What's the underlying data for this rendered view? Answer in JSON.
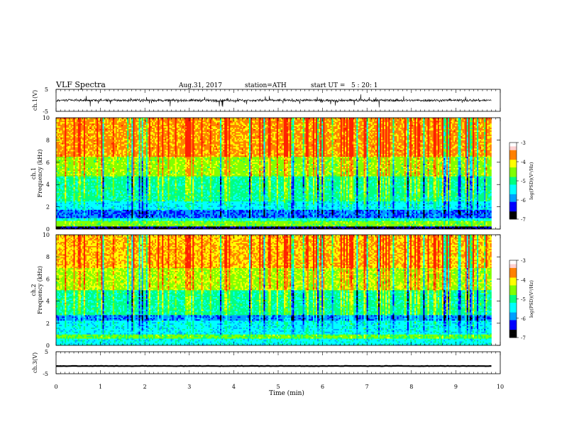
{
  "header": {
    "title": "VLF Spectra",
    "date": "Aug.31, 2017",
    "station": "station=ATH",
    "start_ut": "start UT =   5 : 20: 1"
  },
  "chart_data": [
    {
      "type": "line",
      "panel": "ch1-waveform",
      "ylabel": "ch.1(V)",
      "ylim": [
        -5,
        5
      ],
      "yticks": [
        "5",
        "-5"
      ],
      "xlim": [
        0,
        10
      ],
      "x_extent": [
        0,
        9.8
      ],
      "description_values": {
        "baseline_v": 0.0,
        "typical_amplitude_v": 1.2,
        "peak_amplitude_v": 2.8
      }
    },
    {
      "type": "heatmap",
      "panel": "ch1-spectrogram",
      "ylabel_line1": "ch.1",
      "ylabel_line2": "Frequency (kHz)",
      "ylim": [
        0,
        10
      ],
      "yticks": [
        "0",
        "2",
        "4",
        "6",
        "8",
        "10"
      ],
      "xlim": [
        0,
        10
      ],
      "x_extent": [
        0,
        9.8
      ],
      "frequency_bands_khz": [
        {
          "from": 0.0,
          "to": 0.3,
          "log_psd": -6.6
        },
        {
          "from": 0.3,
          "to": 0.8,
          "log_psd": -4.6
        },
        {
          "from": 0.8,
          "to": 1.0,
          "log_psd": -5.3
        },
        {
          "from": 1.0,
          "to": 1.8,
          "log_psd": -6.1
        },
        {
          "from": 1.8,
          "to": 2.5,
          "log_psd": -5.5
        },
        {
          "from": 2.5,
          "to": 4.8,
          "log_psd": -5.1
        },
        {
          "from": 4.8,
          "to": 6.5,
          "log_psd": -4.5
        },
        {
          "from": 6.5,
          "to": 10.0,
          "log_psd": -3.8
        }
      ],
      "colorbar": {
        "label": "log(PSD)(V²/Hz)",
        "range": [
          -7,
          -3
        ],
        "ticks": [
          "-3",
          "-4",
          "-5",
          "-6",
          "-7"
        ]
      }
    },
    {
      "type": "heatmap",
      "panel": "ch2-spectrogram",
      "ylabel_line1": "ch.2",
      "ylabel_line2": "Frequency (kHz)",
      "ylim": [
        0,
        10
      ],
      "yticks": [
        "0",
        "2",
        "4",
        "6",
        "8",
        "10"
      ],
      "xlim": [
        0,
        10
      ],
      "x_extent": [
        0,
        9.8
      ],
      "frequency_bands_khz": [
        {
          "from": 0.0,
          "to": 0.6,
          "log_psd": -5.4
        },
        {
          "from": 0.6,
          "to": 1.0,
          "log_psd": -4.7
        },
        {
          "from": 1.0,
          "to": 2.2,
          "log_psd": -5.5
        },
        {
          "from": 2.2,
          "to": 2.8,
          "log_psd": -6.0
        },
        {
          "from": 2.8,
          "to": 5.0,
          "log_psd": -5.1
        },
        {
          "from": 5.0,
          "to": 7.0,
          "log_psd": -4.4
        },
        {
          "from": 7.0,
          "to": 10.0,
          "log_psd": -3.9
        }
      ],
      "colorbar": {
        "label": "log(PSD)(V²/Hz)",
        "range": [
          -7,
          -3
        ],
        "ticks": [
          "-3",
          "-4",
          "-5",
          "-6",
          "-7"
        ]
      }
    },
    {
      "type": "line",
      "panel": "ch3-waveform",
      "ylabel": "ch.3(V)",
      "ylim": [
        -5,
        5
      ],
      "yticks": [
        "5",
        "-5"
      ],
      "xlim": [
        0,
        10
      ],
      "x_extent": [
        0,
        9.8
      ],
      "description_values": {
        "baseline_v": -1.5,
        "typical_amplitude_v": 0.2
      }
    }
  ],
  "xaxis": {
    "label": "Time (min)",
    "ticks": [
      "0",
      "1",
      "2",
      "3",
      "4",
      "5",
      "6",
      "7",
      "8",
      "9",
      "10"
    ]
  },
  "colors": {
    "colormap": [
      "#000000",
      "#0000ff",
      "#00a0ff",
      "#00ffff",
      "#00ff80",
      "#80ff00",
      "#ffff00",
      "#ff8000",
      "#ff2000",
      "#ffffff"
    ],
    "waveform": "#000000",
    "frame": "#000000"
  }
}
